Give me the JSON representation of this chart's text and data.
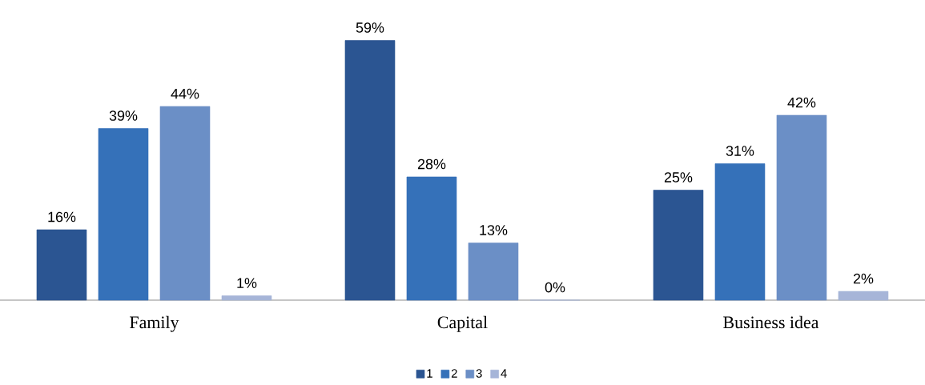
{
  "chart_data": {
    "type": "bar",
    "categories": [
      "Family",
      "Capital",
      "Business idea"
    ],
    "series": [
      {
        "name": "1",
        "color": "#2b5592",
        "values": [
          16,
          59,
          25
        ],
        "value_labels": [
          "16%",
          "59%",
          "25%"
        ]
      },
      {
        "name": "2",
        "color": "#3571b9",
        "values": [
          39,
          28,
          31
        ],
        "value_labels": [
          "39%",
          "28%",
          "31%"
        ]
      },
      {
        "name": "3",
        "color": "#6b8fc6",
        "values": [
          44,
          13,
          42
        ],
        "value_labels": [
          "44%",
          "13%",
          "42%"
        ]
      },
      {
        "name": "4",
        "color": "#a6b5d8",
        "values": [
          1,
          0,
          2
        ],
        "value_labels": [
          "1%",
          "0%",
          "2%"
        ]
      }
    ],
    "legend": "bottom",
    "grid": false,
    "tick_labels": "x"
  }
}
